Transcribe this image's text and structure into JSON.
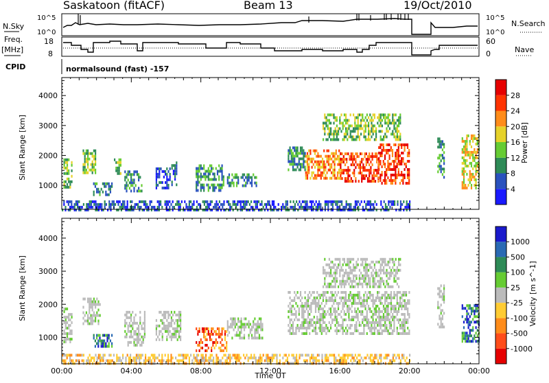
{
  "header": {
    "station": "Saskatoon (fitACF)",
    "beam": "Beam 13",
    "date": "19/Oct/2010"
  },
  "noise_panel": {
    "left_label": "N.Sky",
    "right_label": "N.Search",
    "left_ticks": [
      "10^5",
      "10^0"
    ],
    "right_ticks": [
      "10^5",
      "10^0"
    ]
  },
  "freq_panel": {
    "left_label_line1": "Freq.",
    "left_label_line2": "[MHz]",
    "right_label": "Nave",
    "left_ticks": [
      "18",
      "8"
    ],
    "right_ticks": [
      "60",
      "0"
    ]
  },
  "cpid": {
    "label": "CPID",
    "value": "normalsound (fast) -157"
  },
  "chart_data": [
    {
      "type": "heatmap",
      "panel": "power",
      "ylabel": "Slant Range [km]",
      "yticks": [
        "1000",
        "2000",
        "3000",
        "4000"
      ],
      "ylim": [
        200,
        4600
      ],
      "colorbar_label": "Power [dB]",
      "colorbar_ticks": [
        "4",
        "8",
        "12",
        "16",
        "20",
        "24",
        "28"
      ],
      "colorbar_colors": [
        "#1a1aff",
        "#2a52be",
        "#2e8b57",
        "#66cc33",
        "#e6d22a",
        "#ff8c1a",
        "#ff3300",
        "#e60000"
      ],
      "echo_regions": [
        {
          "t0": 0.1,
          "t1": 0.6,
          "r0": 900,
          "r1": 1900,
          "level": 3
        },
        {
          "t0": 1.2,
          "t1": 1.9,
          "r0": 1400,
          "r1": 2200,
          "level": 3
        },
        {
          "t0": 1.8,
          "t1": 2.9,
          "r0": 700,
          "r1": 1100,
          "level": 2
        },
        {
          "t0": 3.0,
          "t1": 3.4,
          "r0": 1400,
          "r1": 1900,
          "level": 3
        },
        {
          "t0": 3.6,
          "t1": 4.6,
          "r0": 800,
          "r1": 1500,
          "level": 2
        },
        {
          "t0": 5.4,
          "t1": 6.2,
          "r0": 900,
          "r1": 1600,
          "level": 1
        },
        {
          "t0": 6.3,
          "t1": 6.6,
          "r0": 1000,
          "r1": 1800,
          "level": 1
        },
        {
          "t0": 7.7,
          "t1": 9.3,
          "r0": 800,
          "r1": 1700,
          "level": 2
        },
        {
          "t0": 9.5,
          "t1": 11.2,
          "r0": 1000,
          "r1": 1400,
          "level": 2
        },
        {
          "t0": 13.0,
          "t1": 14.0,
          "r0": 1500,
          "r1": 2300,
          "level": 2
        },
        {
          "t0": 14.0,
          "t1": 16.0,
          "r0": 1200,
          "r1": 2200,
          "level": 5
        },
        {
          "t0": 16.0,
          "t1": 18.2,
          "r0": 1100,
          "r1": 2100,
          "level": 6
        },
        {
          "t0": 18.2,
          "t1": 20.0,
          "r0": 1100,
          "r1": 2400,
          "level": 6
        },
        {
          "t0": 15.0,
          "t1": 19.5,
          "r0": 2500,
          "r1": 3400,
          "level": 3
        },
        {
          "t0": 21.6,
          "t1": 22.0,
          "r0": 1300,
          "r1": 2600,
          "level": 2
        },
        {
          "t0": 23.0,
          "t1": 24.0,
          "r0": 900,
          "r1": 2700,
          "level": 4
        },
        {
          "t0": 0.0,
          "t1": 20.0,
          "r0": 200,
          "r1": 500,
          "level": 1
        }
      ]
    },
    {
      "type": "heatmap",
      "panel": "velocity",
      "ylabel": "Slant Range [km]",
      "yticks": [
        "1000",
        "2000",
        "3000",
        "4000"
      ],
      "ylim": [
        200,
        4600
      ],
      "xlabel": "Time UT",
      "xticks": [
        "00:00",
        "04:00",
        "08:00",
        "12:00",
        "16:00",
        "20:00",
        "00:00"
      ],
      "xlim": [
        0,
        24
      ],
      "colorbar_label": "Velocity [m s^-1]",
      "colorbar_ticks": [
        "1000",
        "500",
        "100",
        "25",
        "-25",
        "-100",
        "-500",
        "-1000"
      ],
      "colorbar_colors": [
        "#1a1acc",
        "#2a6ab4",
        "#2e8b57",
        "#66cc33",
        "#bbbbbb",
        "#ffcc33",
        "#ff8c1a",
        "#ff4d1a",
        "#e60000"
      ],
      "echo_regions": [
        {
          "t0": 0.1,
          "t1": 0.6,
          "r0": 900,
          "r1": 1900,
          "class": "ground"
        },
        {
          "t0": 1.2,
          "t1": 2.2,
          "r0": 1400,
          "r1": 2200,
          "class": "ground"
        },
        {
          "t0": 1.8,
          "t1": 3.0,
          "r0": 700,
          "r1": 1100,
          "class": "pos"
        },
        {
          "t0": 3.6,
          "t1": 4.8,
          "r0": 800,
          "r1": 1800,
          "class": "ground"
        },
        {
          "t0": 5.4,
          "t1": 6.8,
          "r0": 900,
          "r1": 1800,
          "class": "ground"
        },
        {
          "t0": 7.7,
          "t1": 9.5,
          "r0": 600,
          "r1": 1300,
          "class": "neg"
        },
        {
          "t0": 9.5,
          "t1": 11.5,
          "r0": 1000,
          "r1": 1600,
          "class": "ground"
        },
        {
          "t0": 13.0,
          "t1": 20.0,
          "r0": 1100,
          "r1": 2400,
          "class": "ground"
        },
        {
          "t0": 15.0,
          "t1": 19.5,
          "r0": 2500,
          "r1": 3400,
          "class": "ground"
        },
        {
          "t0": 21.6,
          "t1": 22.0,
          "r0": 1300,
          "r1": 2600,
          "class": "ground"
        },
        {
          "t0": 23.0,
          "t1": 24.0,
          "r0": 900,
          "r1": 2000,
          "class": "pos"
        },
        {
          "t0": 0.0,
          "t1": 20.0,
          "r0": 200,
          "r1": 500,
          "class": "weak_neg"
        }
      ]
    }
  ]
}
